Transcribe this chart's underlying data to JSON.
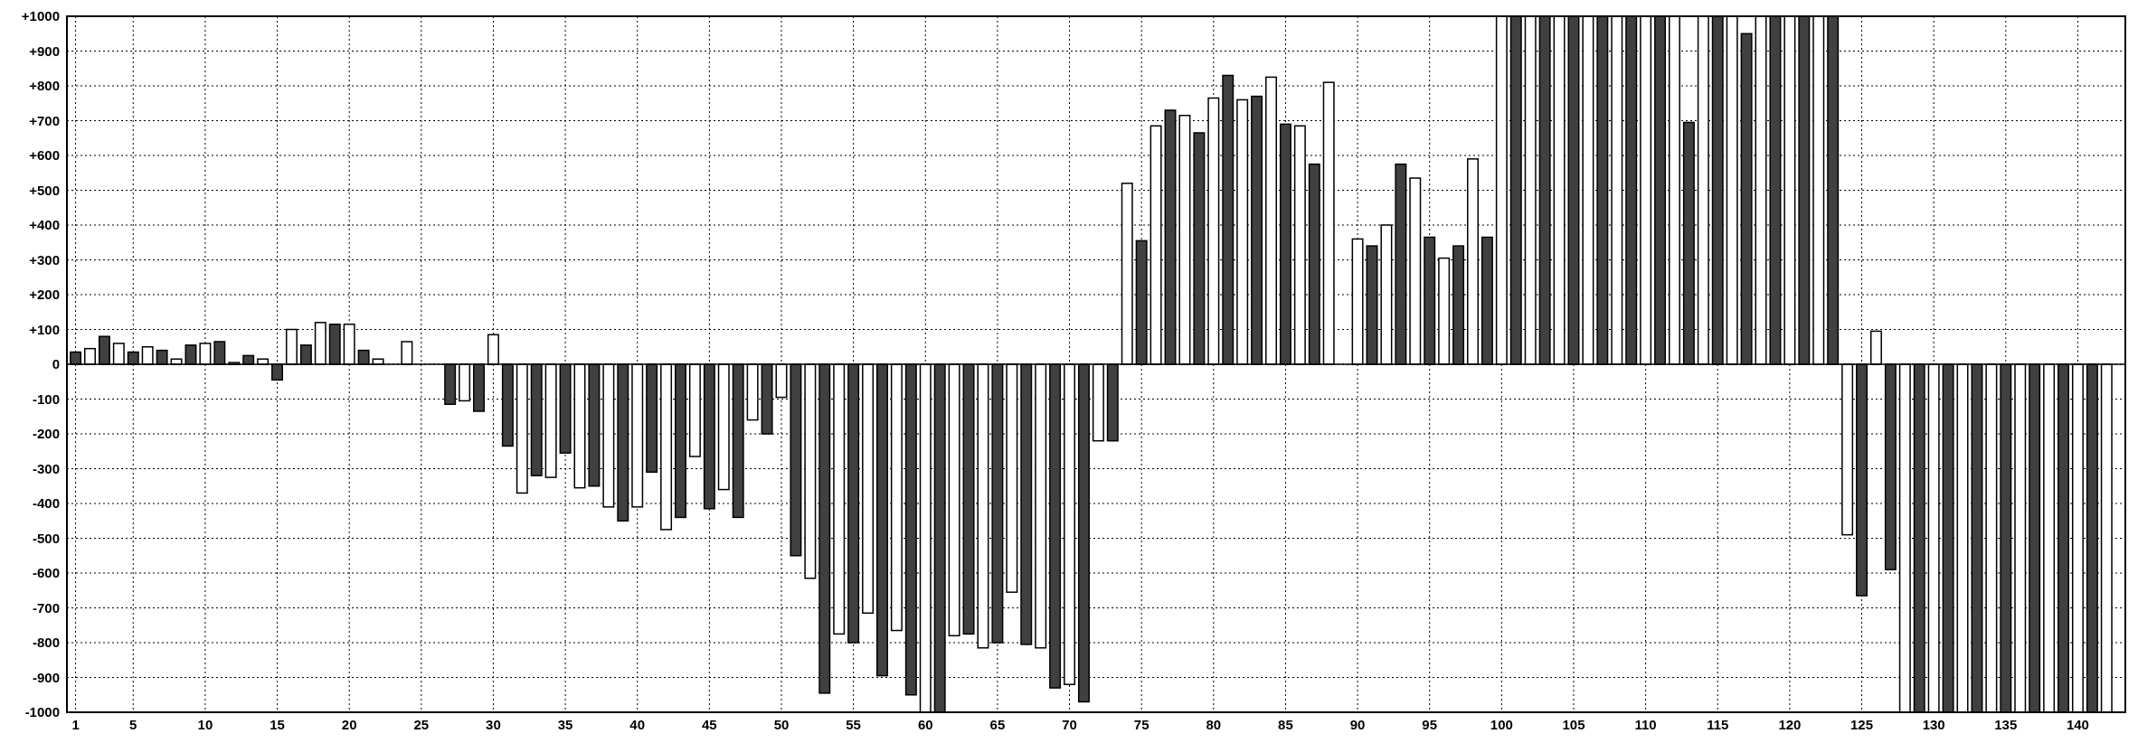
{
  "chart_data": {
    "type": "bar",
    "x": [
      1,
      2,
      3,
      4,
      5,
      6,
      7,
      8,
      9,
      10,
      11,
      12,
      13,
      14,
      15,
      16,
      17,
      18,
      19,
      20,
      21,
      22,
      23,
      24,
      25,
      26,
      27,
      28,
      29,
      30,
      31,
      32,
      33,
      34,
      35,
      36,
      37,
      38,
      39,
      40,
      41,
      42,
      43,
      44,
      45,
      46,
      47,
      48,
      49,
      50,
      51,
      52,
      53,
      54,
      55,
      56,
      57,
      58,
      59,
      60,
      61,
      62,
      63,
      64,
      65,
      66,
      67,
      68,
      69,
      70,
      71,
      72,
      73,
      74,
      75,
      76,
      77,
      78,
      79,
      80,
      81,
      82,
      83,
      84,
      85,
      86,
      87,
      88,
      89,
      90,
      91,
      92,
      93,
      94,
      95,
      96,
      97,
      98,
      99,
      100,
      101,
      102,
      103,
      104,
      105,
      106,
      107,
      108,
      109,
      110,
      111,
      112,
      113,
      114,
      115,
      116,
      117,
      118,
      119,
      120,
      121,
      122,
      123,
      124,
      125,
      126,
      127,
      128,
      129,
      130,
      131,
      132,
      133,
      134,
      135,
      136,
      137,
      138,
      139,
      140,
      141,
      142
    ],
    "values": [
      35,
      45,
      80,
      60,
      35,
      50,
      40,
      15,
      55,
      60,
      65,
      5,
      25,
      15,
      -45,
      100,
      55,
      120,
      115,
      115,
      40,
      15,
      null,
      65,
      null,
      null,
      -115,
      -105,
      -135,
      85,
      -235,
      -370,
      -320,
      -325,
      -255,
      -355,
      -350,
      -410,
      -450,
      -410,
      -310,
      -475,
      -440,
      -265,
      -415,
      -360,
      -440,
      -160,
      -200,
      -95,
      -550,
      -615,
      -945,
      -775,
      -800,
      -715,
      -895,
      -765,
      -950,
      -1000,
      -1000,
      -780,
      -775,
      -815,
      -800,
      -655,
      -805,
      -815,
      -930,
      -920,
      -970,
      -220,
      -220,
      520,
      355,
      685,
      730,
      715,
      665,
      765,
      830,
      760,
      770,
      825,
      690,
      685,
      575,
      810,
      0,
      360,
      340,
      400,
      575,
      535,
      365,
      305,
      340,
      590,
      365,
      1000,
      1000,
      1000,
      1000,
      1000,
      1000,
      1000,
      1000,
      1000,
      1000,
      1000,
      1000,
      1000,
      695,
      1000,
      1000,
      1000,
      950,
      1000,
      1000,
      1000,
      1000,
      1000,
      1000,
      -490,
      -665,
      95,
      -590,
      -1000,
      -1000,
      -1000,
      -1000,
      -1000,
      -1000,
      -1000,
      -1000,
      -1000,
      -1000,
      -1000,
      -1000,
      -1000,
      -1000,
      -1000
    ],
    "colors": [
      "#404040",
      "#ffffff",
      "#404040",
      "#ffffff",
      "#404040",
      "#ffffff",
      "#404040",
      "#ffffff",
      "#404040",
      "#ffffff",
      "#404040",
      "#ffffff",
      "#404040",
      "#ffffff",
      "#404040",
      "#ffffff",
      "#404040",
      "#ffffff",
      "#404040",
      "#ffffff",
      "#404040",
      "#ffffff",
      "#404040",
      "#ffffff",
      "#404040",
      "#ffffff",
      "#404040",
      "#ffffff",
      "#404040",
      "#ffffff",
      "#404040",
      "#ffffff",
      "#404040",
      "#ffffff",
      "#404040",
      "#ffffff",
      "#404040",
      "#ffffff",
      "#404040",
      "#ffffff",
      "#404040",
      "#ffffff",
      "#404040",
      "#ffffff",
      "#404040",
      "#ffffff",
      "#404040",
      "#ffffff",
      "#404040",
      "#ffffff",
      "#404040",
      "#ffffff",
      "#404040",
      "#ffffff",
      "#404040",
      "#ffffff",
      "#404040",
      "#ffffff",
      "#404040",
      "#ffffff",
      "#404040",
      "#ffffff",
      "#404040",
      "#ffffff",
      "#404040",
      "#ffffff",
      "#404040",
      "#ffffff",
      "#404040",
      "#ffffff",
      "#404040",
      "#ffffff",
      "#404040",
      "#ffffff",
      "#404040",
      "#ffffff",
      "#404040",
      "#ffffff",
      "#404040",
      "#ffffff",
      "#404040",
      "#ffffff",
      "#404040",
      "#ffffff",
      "#404040",
      "#ffffff",
      "#404040",
      "#ffffff",
      "#404040",
      "#ffffff",
      "#404040",
      "#ffffff",
      "#404040",
      "#ffffff",
      "#404040",
      "#ffffff",
      "#404040",
      "#ffffff",
      "#404040",
      "#ffffff",
      "#404040",
      "#ffffff",
      "#404040",
      "#ffffff",
      "#404040",
      "#ffffff",
      "#404040",
      "#ffffff",
      "#404040",
      "#ffffff",
      "#404040",
      "#ffffff",
      "#404040",
      "#ffffff",
      "#404040",
      "#ffffff",
      "#404040",
      "#ffffff",
      "#404040",
      "#ffffff",
      "#404040",
      "#ffffff",
      "#404040",
      "#ffffff",
      "#404040",
      "#ffffff",
      "#404040",
      "#ffffff",
      "#404040",
      "#ffffff",
      "#404040",
      "#ffffff",
      "#404040",
      "#ffffff",
      "#404040",
      "#ffffff",
      "#404040",
      "#ffffff",
      "#404040",
      "#ffffff",
      "#404040",
      "#ffffff"
    ],
    "xlim": [
      0.4,
      143.3
    ],
    "xticks": [
      1,
      5,
      10,
      15,
      20,
      25,
      30,
      35,
      40,
      45,
      50,
      55,
      60,
      65,
      70,
      75,
      80,
      85,
      90,
      95,
      100,
      105,
      110,
      115,
      120,
      125,
      130,
      135,
      140
    ],
    "ylim": [
      -1000,
      1000
    ],
    "yticks": [
      {
        "value": -1000,
        "label": "-1000"
      },
      {
        "value": -900,
        "label": "-900"
      },
      {
        "value": -800,
        "label": "-800"
      },
      {
        "value": -700,
        "label": "-700"
      },
      {
        "value": -600,
        "label": "-600"
      },
      {
        "value": -500,
        "label": "-500"
      },
      {
        "value": -400,
        "label": "-400"
      },
      {
        "value": -300,
        "label": "-300"
      },
      {
        "value": -200,
        "label": "-200"
      },
      {
        "value": -100,
        "label": "-100"
      },
      0,
      {
        "value": 100,
        "label": "+100"
      },
      {
        "value": 200,
        "label": "+200"
      },
      {
        "value": 300,
        "label": "+300"
      },
      {
        "value": 400,
        "label": "+400"
      },
      {
        "value": 500,
        "label": "+500"
      },
      {
        "value": 600,
        "label": "+600"
      },
      {
        "value": 700,
        "label": "+700"
      },
      {
        "value": 800,
        "label": "+800"
      },
      {
        "value": 900,
        "label": "+900"
      },
      {
        "value": 1000,
        "label": "+1000"
      }
    ],
    "grid": true
  }
}
